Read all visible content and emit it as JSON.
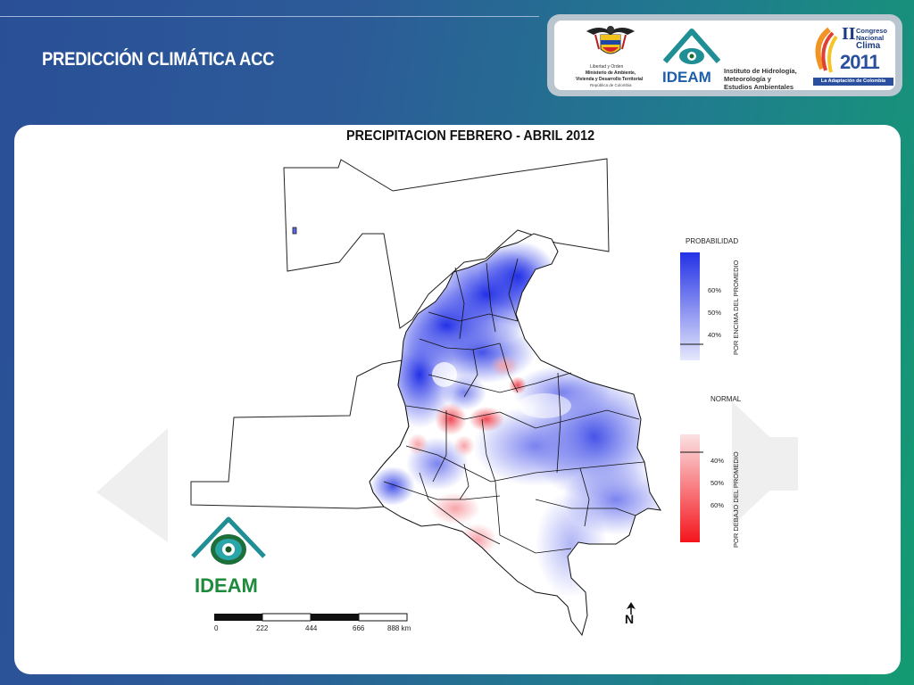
{
  "slide": {
    "title": "PREDICCIÓN CLIMÁTICA ACC"
  },
  "logos": {
    "ministry": {
      "motto": "Libertad y Orden",
      "line1": "Ministerio de Ambiente,",
      "line2": "Vivienda y Desarrollo Territorial",
      "line3": "República de Colombia"
    },
    "ideam": {
      "name": "IDEAM",
      "desc1": "Instituto de Hidrología,",
      "desc2": "Meteorología y",
      "desc3": "Estudios Ambientales"
    },
    "congress": {
      "roman": "II",
      "line1": "Congreso",
      "line2": "Nacional",
      "line3": "Clima",
      "year": "2011",
      "tagline": "La Adaptación de Colombia"
    }
  },
  "map": {
    "title": "PRECIPITACION   FEBRERO - ABRIL 2012",
    "watermark_logo": "IDEAM",
    "north_label": "N",
    "colors": {
      "above_strong": "#2331e6",
      "above_light": "#c8ccf7",
      "below_strong": "#f4151c",
      "below_light": "#fbd3d6",
      "normal": "#ffffff"
    },
    "legend_above": {
      "title": "PROBABILIDAD",
      "ticks": [
        "60%",
        "50%",
        "40%"
      ],
      "side_label": "POR ENCIMA DEL PROMEDIO"
    },
    "legend_below": {
      "title": "NORMAL",
      "ticks": [
        "40%",
        "50%",
        "60%"
      ],
      "side_label": "POR DEBAJO DEL PROMEDIO"
    },
    "scale_bar": {
      "labels": [
        "0",
        "222",
        "444",
        "666",
        "888 km"
      ]
    }
  }
}
